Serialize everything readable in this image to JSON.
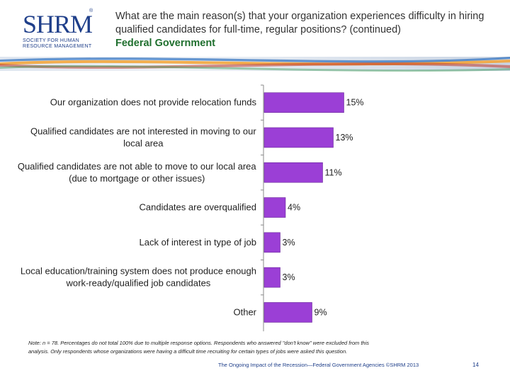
{
  "logo": {
    "mark": "SHRM",
    "reg": "®",
    "line1": "Society for Human",
    "line2": "Resource Management"
  },
  "header": {
    "question": "What are the main reason(s) that your organization experiences difficulty in hiring qualified candidates for full-time, regular positions? (continued)",
    "subtitle": "Federal Government"
  },
  "colors": {
    "bar": "#9b3fd6",
    "bar_edge": "#6a2a9a",
    "brand_blue": "#1f3f8a",
    "subtitle_green": "#1f6f2e"
  },
  "chart_data": {
    "type": "bar",
    "orientation": "horizontal",
    "categories": [
      [
        "Our organization does not provide relocation funds"
      ],
      [
        "Qualified candidates are not interested in moving to our",
        "local area"
      ],
      [
        "Qualified candidates are not able to move to our local area",
        "(due to mortgage or other issues)"
      ],
      [
        "Candidates are overqualified"
      ],
      [
        "Lack of interest in type of job"
      ],
      [
        "Local education/training system does not produce enough",
        "work-ready/qualified job candidates"
      ],
      [
        "Other"
      ]
    ],
    "values": [
      15,
      13,
      11,
      4,
      3,
      3,
      9
    ],
    "value_labels": [
      "15%",
      "13%",
      "11%",
      "4%",
      "3%",
      "3%",
      "9%"
    ],
    "xlim": [
      0,
      20
    ],
    "grid": false,
    "legend": "none"
  },
  "note": {
    "line1": "Note: n = 78. Percentages do not total 100% due to multiple response options. Respondents who answered \"don't know\" were excluded from this",
    "line2": "analysis. Only respondents whose organizations were having a difficult time recruiting for certain types of jobs were asked this question."
  },
  "footer": {
    "text": "The Ongoing Impact of the Recession—Federal Government Agencies ©SHRM 2013",
    "page": "14"
  }
}
